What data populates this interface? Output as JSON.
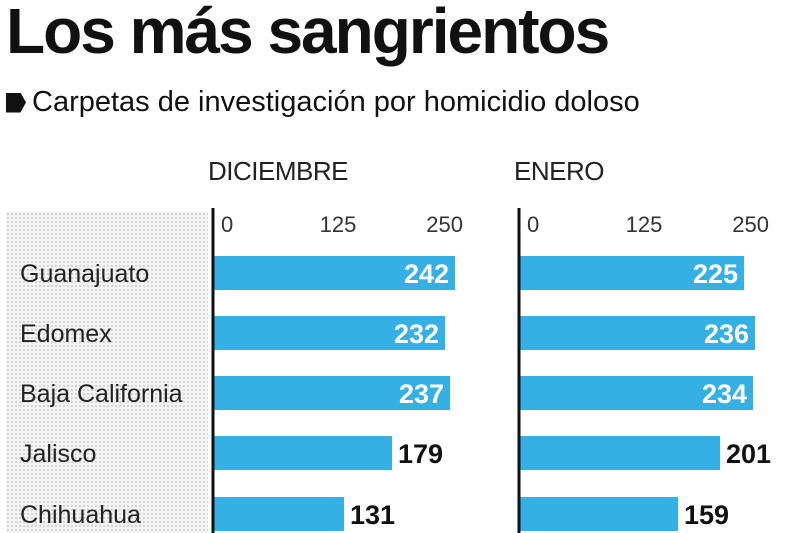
{
  "title": "Los más sangrientos",
  "subtitle": "Carpetas de investigación por homicidio doloso",
  "colors": {
    "bar": "#35b0e4",
    "axis": "#111111",
    "value_inside": "#ffffff",
    "value_outside": "#111111"
  },
  "chart_data": [
    {
      "type": "bar",
      "orientation": "horizontal",
      "title": "DICIEMBRE",
      "categories": [
        "Guanajuato",
        "Edomex",
        "Baja California",
        "Jalisco",
        "Chihuahua"
      ],
      "values": [
        242,
        232,
        237,
        179,
        131
      ],
      "xlim": [
        0,
        250
      ],
      "xticks": [
        "0",
        "125",
        "250"
      ],
      "grid": false
    },
    {
      "type": "bar",
      "orientation": "horizontal",
      "title": "ENERO",
      "categories": [
        "Guanajuato",
        "Edomex",
        "Baja California",
        "Jalisco",
        "Chihuahua"
      ],
      "values": [
        225,
        236,
        234,
        201,
        159
      ],
      "xlim": [
        0,
        250
      ],
      "xticks": [
        "0",
        "125",
        "250"
      ],
      "grid": false
    }
  ]
}
